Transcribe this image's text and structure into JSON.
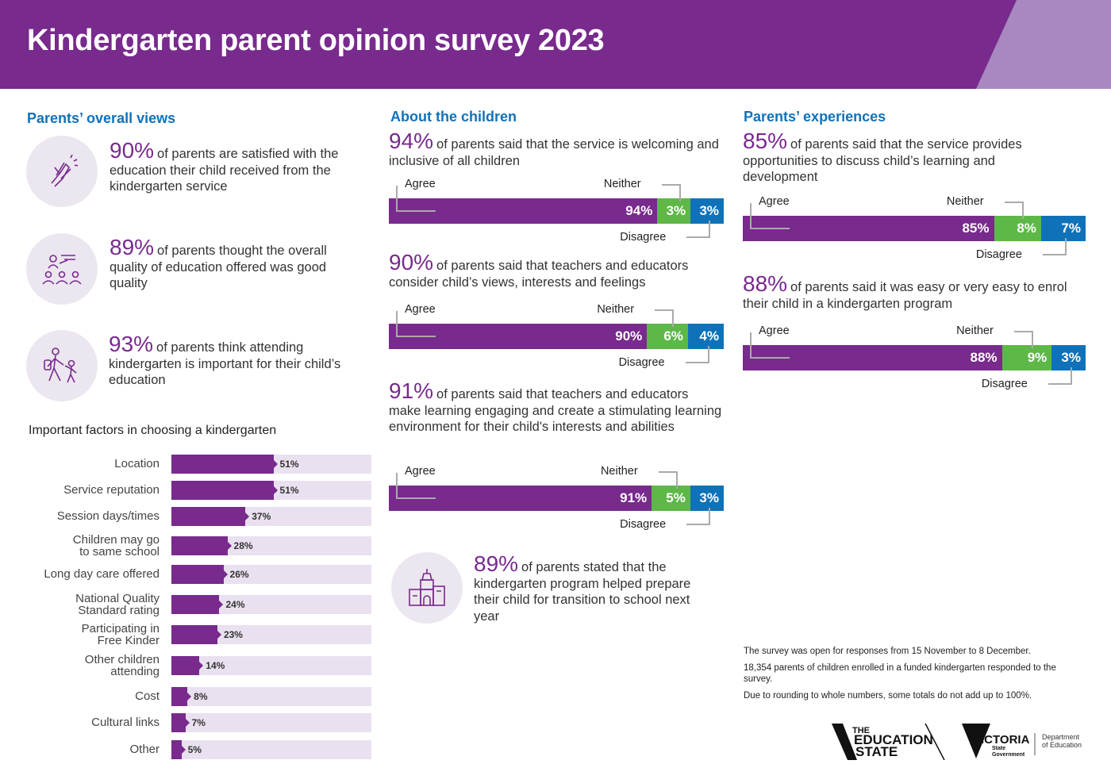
{
  "header": {
    "title": "Kindergarten parent opinion survey 2023"
  },
  "colors": {
    "purple": "#782a8d",
    "green": "#5db847",
    "blue": "#0f72b9",
    "heading": "#1072ba",
    "track": "#e9e1ef"
  },
  "overall": {
    "heading": "Parents’ overall views",
    "items": [
      {
        "icon": "clapping-hands-icon",
        "pct": "90%",
        "text": "of parents are satisfied with the education their child received from the kindergarten service"
      },
      {
        "icon": "teacher-group-icon",
        "pct": "89%",
        "text": "of parents thought the overall quality of education offered was good quality"
      },
      {
        "icon": "parent-child-walking-icon",
        "pct": "93%",
        "text": "of parents think attending kindergarten is important for their child’s education"
      }
    ]
  },
  "children": {
    "heading": "About the children",
    "items": [
      {
        "pct": "94%",
        "text": "of parents said that the service is welcoming and inclusive of all children"
      },
      {
        "pct": "90%",
        "text": "of parents said that teachers and educators consider child’s views, interests and feelings"
      },
      {
        "pct": "91%",
        "text": "of parents said that teachers and educators make learning engaging and create a stimulating learning environment for their child's interests and abilities"
      }
    ],
    "transition": {
      "icon": "building-blocks-icon",
      "pct": "89%",
      "text": "of parents stated that the kindergarten program helped prepare their child for transition to school next year"
    }
  },
  "experiences": {
    "heading": "Parents’ experiences",
    "items": [
      {
        "pct": "85%",
        "text": "of parents said that the service provides opportunities to discuss child’s learning and development"
      },
      {
        "pct": "88%",
        "text": "of parents said it was easy or very easy to enrol their child in a kindergarten program"
      }
    ]
  },
  "legend": {
    "agree": "Agree",
    "neither": "Neither",
    "disagree": "Disagree"
  },
  "chart_data": [
    {
      "type": "bar",
      "orientation": "horizontal",
      "title": "Important factors in choosing a kindergarten",
      "categories": [
        "Location",
        "Service reputation",
        "Session days/times",
        "Children may go to same school",
        "Long day care offered",
        "National Quality Standard rating",
        "Participating in Free Kinder",
        "Other children attending",
        "Cost",
        "Cultural links",
        "Other"
      ],
      "values": [
        51,
        51,
        37,
        28,
        26,
        24,
        23,
        14,
        8,
        7,
        5
      ],
      "labels": [
        "51%",
        "51%",
        "37%",
        "28%",
        "26%",
        "24%",
        "23%",
        "14%",
        "8%",
        "7%",
        "5%"
      ],
      "xlim": [
        0,
        100
      ]
    },
    {
      "type": "bar",
      "stacked": true,
      "series_names": [
        "Agree",
        "Neither",
        "Disagree"
      ],
      "bars": [
        {
          "values": [
            94,
            3,
            3
          ],
          "labels": [
            "94%",
            "3%",
            "3%"
          ]
        },
        {
          "values": [
            90,
            6,
            4
          ],
          "labels": [
            "90%",
            "6%",
            "4%"
          ]
        },
        {
          "values": [
            91,
            5,
            3
          ],
          "labels": [
            "91%",
            "5%",
            "3%"
          ]
        },
        {
          "values": [
            85,
            8,
            7
          ],
          "labels": [
            "85%",
            "8%",
            "7%"
          ]
        },
        {
          "values": [
            88,
            9,
            3
          ],
          "labels": [
            "88%",
            "9%",
            "3%"
          ]
        }
      ]
    }
  ],
  "footnotes": [
    "The survey was open for responses from 15 November to 8 December.",
    "18,354 parents of children enrolled in a funded kindergarten responded to the survey.",
    "Due to rounding to whole numbers, some totals do not add up to 100%."
  ],
  "logos": {
    "education_state": "THE EDUCATION STATE",
    "victoria": "VICTORIA State Government",
    "department": "Department of Education"
  }
}
